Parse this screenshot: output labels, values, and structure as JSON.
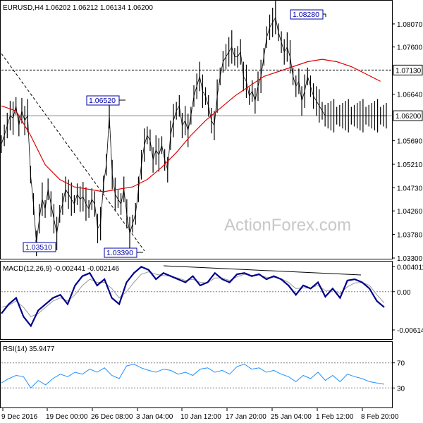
{
  "header": {
    "symbol": "EURUSD,H4",
    "ohlc": "1.06202 1.06212 1.06134 1.06200",
    "macd_title": "MACD(12,26,9) -0.002441 -0.002146",
    "rsi_title": "RSI(14) 35.9477"
  },
  "watermark": "ActionForex.com",
  "colors": {
    "price": "#000000",
    "ma": "#e00000",
    "macd_main": "#00008b",
    "macd_signal": "#9a9a9a",
    "rsi": "#1e90ff",
    "label_box_border": "#0000aa",
    "grid": "#808080"
  },
  "chart_data": [
    {
      "type": "line",
      "panel": "price",
      "title": "EURUSD,H4",
      "y_ticks": [
        "1.08070",
        "1.07600",
        "1.06640",
        "1.05690",
        "1.05210",
        "1.04730",
        "1.04260",
        "1.03780",
        "1.03300"
      ],
      "ylim": [
        1.033,
        1.085
      ],
      "x_ticks": [
        "9 Dec 2016",
        "19 Dec 00:00",
        "26 Dec 08:00",
        "3 Jan 04:00",
        "10 Jan 12:00",
        "17 Jan 20:00",
        "25 Jan 04:00",
        "1 Feb 12:00",
        "8 Feb 20:00"
      ],
      "price_labels": [
        "1.07130",
        "1.06200"
      ],
      "annotations": [
        "1.08280",
        "1.06520",
        "1.03510",
        "1.03390"
      ],
      "series": [
        {
          "role": "close",
          "x": [
            0,
            2,
            4,
            6,
            8,
            10,
            12,
            14,
            16,
            18,
            20,
            22,
            24,
            26,
            28,
            30,
            32,
            34,
            36,
            38,
            40,
            42,
            44,
            46,
            48,
            50,
            52,
            54,
            56,
            58,
            60,
            62,
            64,
            66,
            68,
            70,
            72,
            74,
            76,
            78,
            80,
            82,
            84,
            86,
            88,
            90,
            92,
            94,
            96,
            98,
            100,
            102,
            104,
            106,
            108,
            110,
            112,
            114,
            116,
            118,
            120,
            122,
            124,
            126,
            128,
            130,
            132,
            134,
            136,
            138,
            140,
            142,
            144,
            146,
            148,
            150,
            152,
            154,
            156,
            158,
            160,
            162,
            164,
            166,
            168,
            170,
            172,
            174,
            176,
            178,
            180,
            182,
            184,
            186,
            188,
            190,
            192,
            194,
            196,
            198,
            200,
            202,
            204,
            206,
            208,
            210,
            212,
            214,
            216,
            218,
            220,
            222,
            224,
            226,
            228,
            230,
            232,
            234,
            236,
            238,
            240,
            242,
            244,
            246,
            248,
            250,
            252,
            254,
            256,
            258,
            260,
            262,
            264
          ],
          "values": [
            1.0562,
            1.058,
            1.06,
            1.062,
            1.0615,
            1.064,
            1.06,
            1.063,
            1.061,
            1.062,
            1.05,
            1.044,
            1.036,
            1.041,
            1.045,
            1.043,
            1.047,
            1.044,
            1.041,
            1.038,
            1.042,
            1.044,
            1.047,
            1.046,
            1.045,
            1.044,
            1.046,
            1.045,
            1.0455,
            1.044,
            1.043,
            1.045,
            1.044,
            1.039,
            1.04,
            1.048,
            1.052,
            1.062,
            1.05,
            1.046,
            1.045,
            1.044,
            1.047,
            1.042,
            1.038,
            1.04,
            1.042,
            1.047,
            1.052,
            1.056,
            1.058,
            1.057,
            1.053,
            1.055,
            1.054,
            1.056,
            1.053,
            1.051,
            1.058,
            1.061,
            1.063,
            1.064,
            1.06,
            1.061,
            1.059,
            1.062,
            1.066,
            1.068,
            1.07,
            1.067,
            1.066,
            1.064,
            1.061,
            1.06,
            1.066,
            1.07,
            1.073,
            1.074,
            1.075,
            1.076,
            1.074,
            1.074,
            1.075,
            1.07,
            1.069,
            1.066,
            1.067,
            1.065,
            1.068,
            1.07,
            1.074,
            1.078,
            1.08,
            1.081,
            1.082,
            1.079,
            1.077,
            1.075,
            1.076,
            1.074,
            1.07,
            1.068,
            1.069,
            1.065,
            1.067,
            1.07,
            1.068,
            1.066,
            1.065,
            1.064,
            1.063,
            1.062,
            1.062,
            1.062,
            1.062,
            1.062,
            1.062,
            1.062,
            1.062,
            1.062,
            1.062,
            1.062,
            1.062,
            1.062,
            1.062,
            1.062,
            1.062,
            1.062,
            1.062,
            1.062,
            1.062,
            1.062,
            1.062
          ]
        },
        {
          "role": "moving_average",
          "x": [
            0,
            10,
            20,
            30,
            40,
            50,
            60,
            70,
            80,
            90,
            100,
            110,
            120,
            130,
            140,
            150,
            160,
            170,
            180,
            190,
            200,
            210,
            220,
            230,
            240,
            250,
            260
          ],
          "values": [
            1.064,
            1.063,
            1.058,
            1.052,
            1.049,
            1.0475,
            1.047,
            1.0465,
            1.047,
            1.0475,
            1.049,
            1.0515,
            1.0545,
            1.058,
            1.061,
            1.0635,
            1.066,
            1.068,
            1.07,
            1.071,
            1.072,
            1.073,
            1.0735,
            1.073,
            1.072,
            1.0705,
            1.069
          ]
        }
      ]
    },
    {
      "type": "line",
      "panel": "macd",
      "title": "MACD(12,26,9) -0.002441 -0.002146",
      "y_ticks": [
        "0.004011",
        "0.00",
        "-0.006143"
      ],
      "ylim": [
        -0.0075,
        0.0045
      ],
      "series": [
        {
          "role": "macd_main",
          "x": [
            0,
            5,
            10,
            15,
            20,
            25,
            30,
            35,
            40,
            45,
            50,
            55,
            60,
            65,
            70,
            75,
            80,
            85,
            90,
            95,
            100,
            105,
            110,
            115,
            120,
            125,
            130,
            135,
            140,
            145,
            150,
            155,
            160,
            165,
            170,
            175,
            180,
            185,
            190,
            195,
            200,
            205,
            210,
            215,
            220,
            225,
            230,
            235,
            240,
            245,
            250,
            255,
            260
          ],
          "values": [
            -0.0035,
            -0.002,
            -0.001,
            -0.004,
            -0.0055,
            -0.003,
            -0.002,
            -0.001,
            -0.0005,
            -0.002,
            0.001,
            0.0025,
            0.003,
            0.001,
            0.002,
            -0.001,
            -0.002,
            0.0015,
            0.003,
            0.004,
            0.0035,
            0.002,
            0.003,
            0.0025,
            0.002,
            0.0015,
            0.0025,
            0.001,
            0.0015,
            0.003,
            0.002,
            0.0015,
            0.0028,
            0.003,
            0.0025,
            0.0028,
            0.002,
            0.0025,
            0.002,
            0.001,
            -0.0005,
            0.001,
            0.0005,
            0.0015,
            -0.0008,
            0.0005,
            -0.001,
            0.0018,
            0.002,
            0.0015,
            0.0005,
            -0.0015,
            -0.0025
          ]
        },
        {
          "role": "signal",
          "x": [
            0,
            5,
            10,
            15,
            20,
            25,
            30,
            35,
            40,
            45,
            50,
            55,
            60,
            65,
            70,
            75,
            80,
            85,
            90,
            95,
            100,
            105,
            110,
            115,
            120,
            125,
            130,
            135,
            140,
            145,
            150,
            155,
            160,
            165,
            170,
            175,
            180,
            185,
            190,
            195,
            200,
            205,
            210,
            215,
            220,
            225,
            230,
            235,
            240,
            245,
            250,
            255,
            260
          ],
          "values": [
            -0.0025,
            -0.0022,
            -0.0015,
            -0.0025,
            -0.004,
            -0.0035,
            -0.0025,
            -0.0015,
            -0.001,
            -0.0015,
            -0.0005,
            0.001,
            0.002,
            0.0015,
            0.0015,
            0.0005,
            -0.001,
            0.0,
            0.0015,
            0.0028,
            0.0032,
            0.0028,
            0.0026,
            0.0025,
            0.0022,
            0.0018,
            0.002,
            0.0015,
            0.0014,
            0.0022,
            0.0022,
            0.0018,
            0.0024,
            0.0028,
            0.0026,
            0.0027,
            0.0023,
            0.0023,
            0.0021,
            0.0015,
            0.0005,
            0.0006,
            0.0006,
            0.001,
            0.0002,
            0.0003,
            -0.0003,
            0.0008,
            0.0014,
            0.0015,
            0.001,
            -0.0005,
            -0.0018
          ]
        }
      ]
    },
    {
      "type": "line",
      "panel": "rsi",
      "title": "RSI(14) 35.9477",
      "y_ticks": [
        "70",
        "30"
      ],
      "ylim": [
        0,
        100
      ],
      "series": [
        {
          "role": "rsi",
          "x": [
            0,
            5,
            10,
            15,
            20,
            25,
            30,
            35,
            40,
            45,
            50,
            55,
            60,
            65,
            70,
            75,
            80,
            85,
            90,
            95,
            100,
            105,
            110,
            115,
            120,
            125,
            130,
            135,
            140,
            145,
            150,
            155,
            160,
            165,
            170,
            175,
            180,
            185,
            190,
            195,
            200,
            205,
            210,
            215,
            220,
            225,
            230,
            235,
            240,
            245,
            250,
            255,
            260
          ],
          "values": [
            38,
            45,
            50,
            48,
            30,
            42,
            35,
            45,
            52,
            48,
            55,
            52,
            60,
            55,
            62,
            50,
            45,
            65,
            68,
            62,
            58,
            55,
            60,
            58,
            52,
            55,
            50,
            60,
            62,
            55,
            58,
            52,
            64,
            68,
            60,
            62,
            55,
            58,
            52,
            48,
            40,
            50,
            45,
            55,
            42,
            50,
            40,
            52,
            48,
            45,
            40,
            38,
            36
          ]
        }
      ]
    }
  ]
}
